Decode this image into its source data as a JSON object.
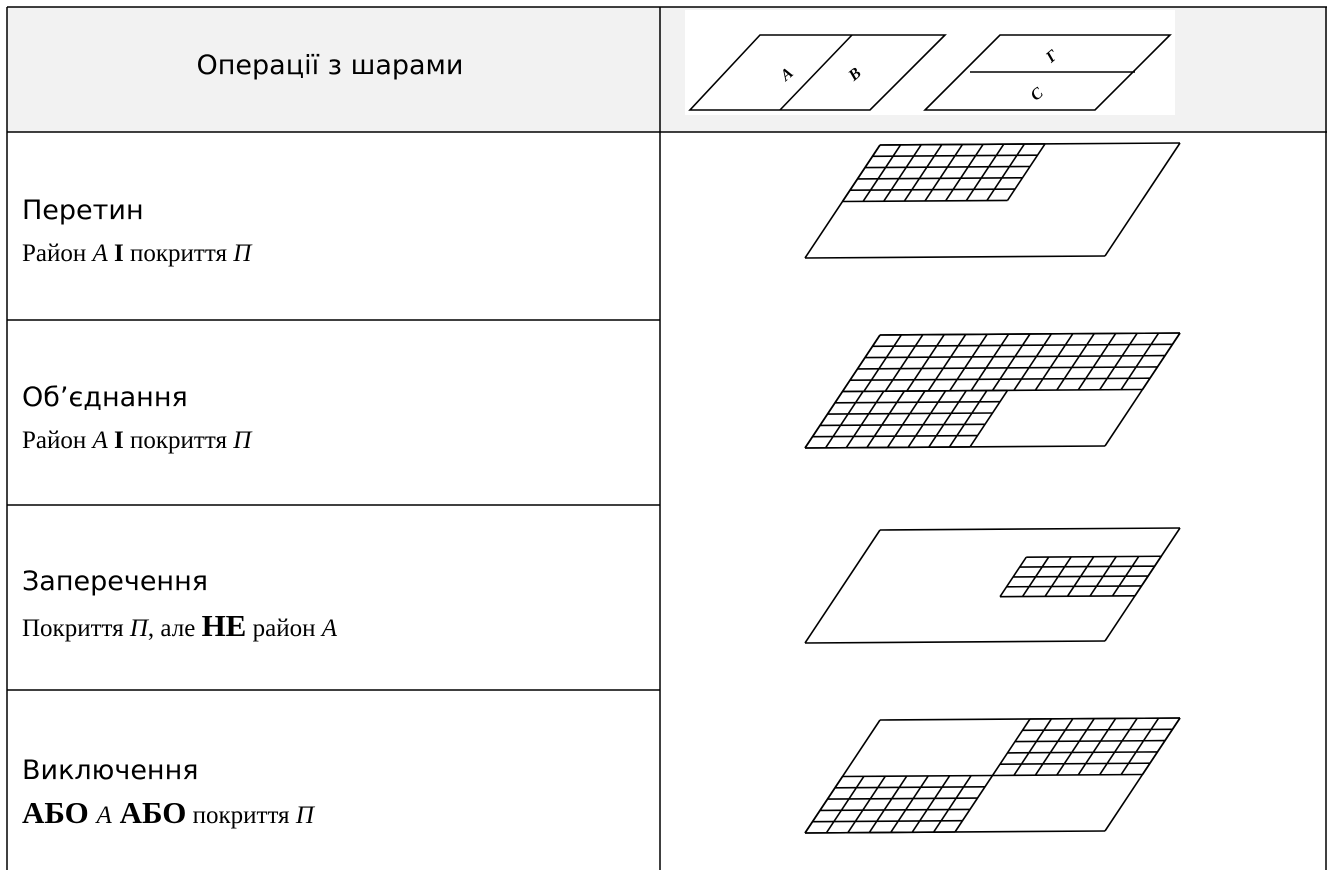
{
  "table": {
    "header": {
      "title": "Операції з шарами",
      "figure_labels": [
        "А",
        "В",
        "Г",
        "С"
      ]
    },
    "rows": [
      {
        "title": "Перетин",
        "description": [
          "Район ",
          "А",
          " І",
          " покриття ",
          "П"
        ]
      },
      {
        "title": "Об’єднання",
        "description": [
          "Район ",
          "А",
          " І",
          " покриття ",
          "П"
        ]
      },
      {
        "title": "Заперечення",
        "description": [
          "Покриття ",
          "П",
          ", але ",
          "НЕ",
          " район ",
          "А"
        ]
      },
      {
        "title": "Виключення",
        "description": [
          "АБО ",
          "А",
          " АБО",
          " покриття ",
          "П"
        ]
      }
    ]
  }
}
